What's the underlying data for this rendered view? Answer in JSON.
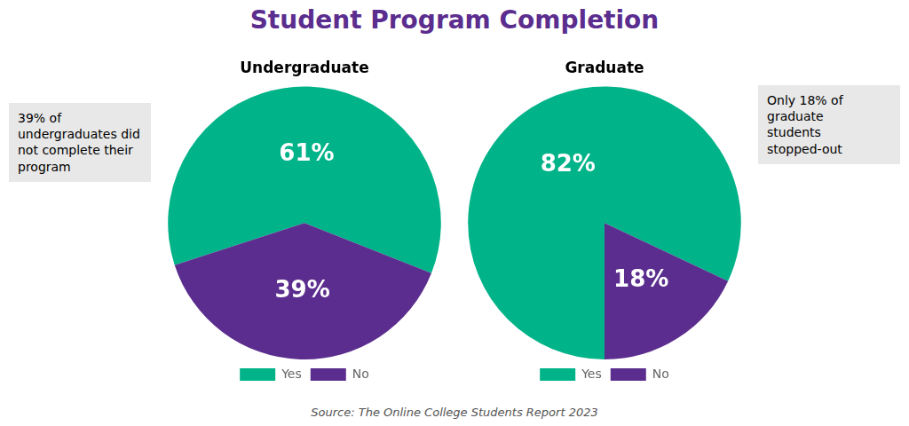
{
  "title": "Student Program Completion",
  "source": "Source: The Online College Students Report 2023",
  "chart_data": [
    {
      "type": "pie",
      "subtitle": "Undergraduate",
      "categories": [
        "Yes",
        "No"
      ],
      "values": [
        61,
        39
      ],
      "value_labels": [
        "61%",
        "39%"
      ],
      "colors": [
        "#00b388",
        "#5b2d8e"
      ],
      "data_labels": true,
      "legend": "bottom",
      "annotation": "39% of\nundergraduates did\nnot complete their\nprogram"
    },
    {
      "type": "pie",
      "subtitle": "Graduate",
      "categories": [
        "Yes",
        "No"
      ],
      "values": [
        82,
        18
      ],
      "value_labels": [
        "82%",
        "18%"
      ],
      "colors": [
        "#00b388",
        "#5b2d8e"
      ],
      "data_labels": true,
      "legend": "bottom",
      "annotation": "Only 18% of\ngraduate\nstudents\nstopped-out"
    }
  ]
}
